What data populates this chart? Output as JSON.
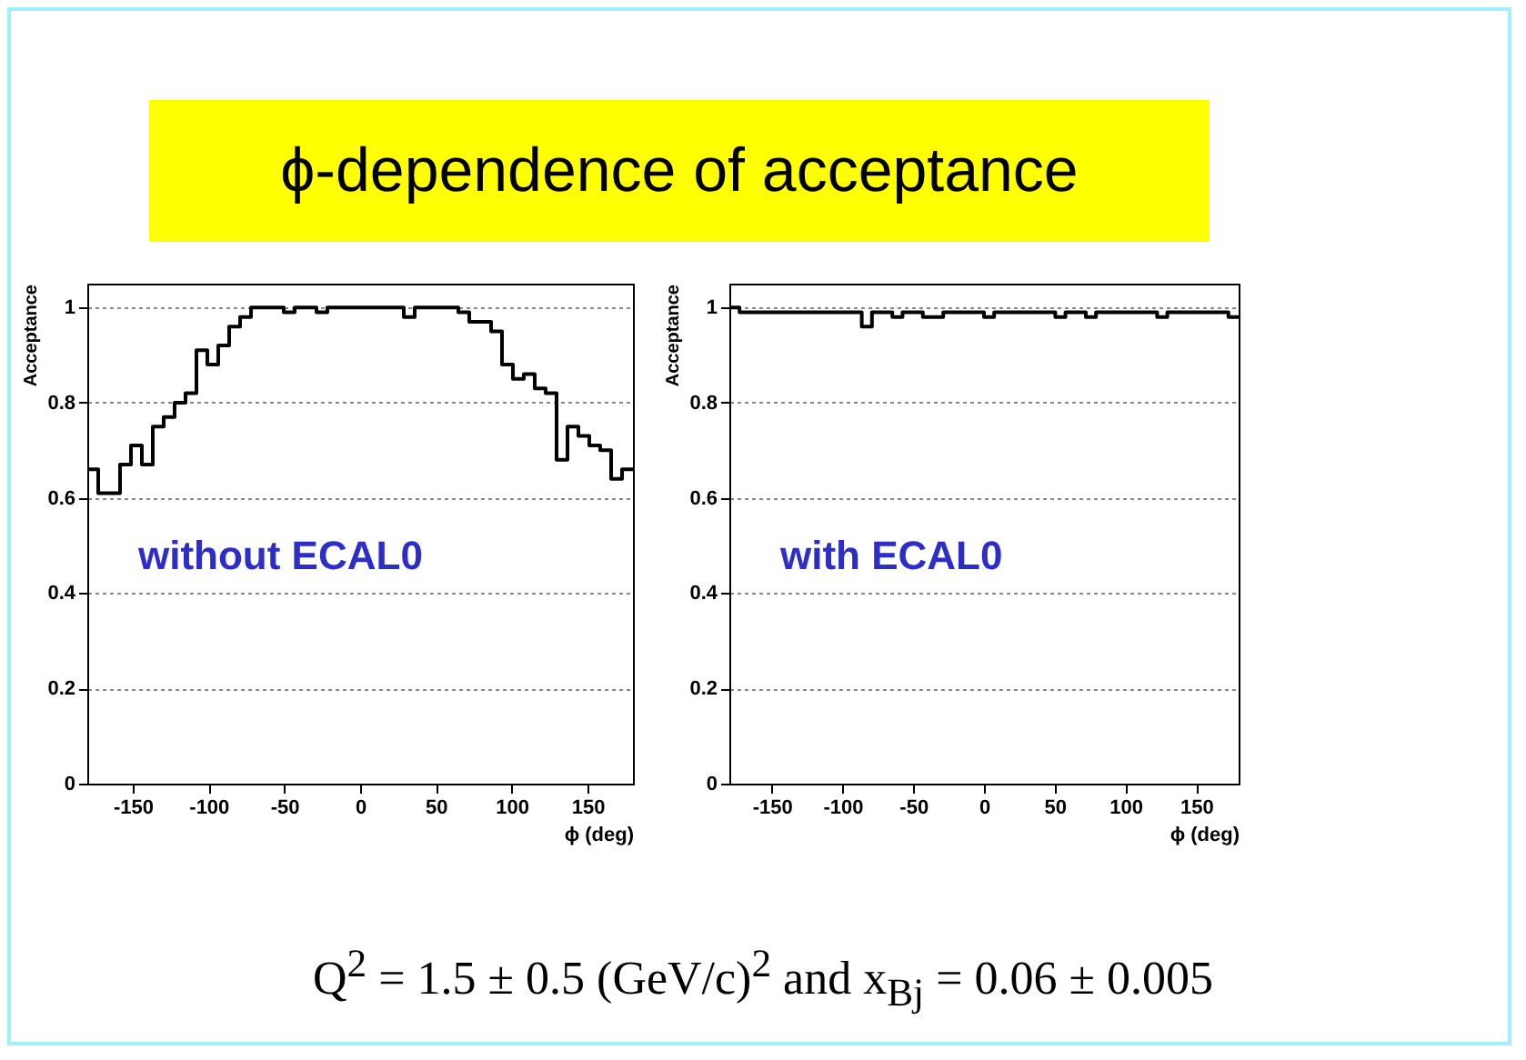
{
  "chart_data": [
    {
      "type": "histogram",
      "title": "ϕ-dependence of acceptance",
      "xlabel": "ϕ (deg)",
      "ylabel": "Acceptance",
      "annotations": [
        "without ECAL0"
      ],
      "bins": [
        -180,
        -172.8,
        -165.6,
        -158.4,
        -151.2,
        -144,
        -136.8,
        -129.6,
        -122.4,
        -115.2,
        -108,
        -100.8,
        -93.6,
        -86.4,
        -79.2,
        -72,
        -64.8,
        -57.6,
        -50.4,
        -43.2,
        -36,
        -28.8,
        -21.6,
        -14.4,
        -7.2,
        0,
        7.2,
        14.4,
        21.6,
        28.8,
        36,
        43.2,
        50.4,
        57.6,
        64.8,
        72,
        79.2,
        86.4,
        93.6,
        100.8,
        108,
        115.2,
        122.4,
        129.6,
        136.8,
        144,
        151.2,
        158.4,
        165.6,
        172.8,
        180
      ],
      "values": [
        0.66,
        0.61,
        0.61,
        0.67,
        0.71,
        0.67,
        0.75,
        0.77,
        0.8,
        0.82,
        0.91,
        0.88,
        0.92,
        0.96,
        0.98,
        1,
        1,
        1,
        0.99,
        1,
        1,
        0.99,
        1,
        1,
        1,
        1,
        1,
        1,
        1,
        0.98,
        1,
        1,
        1,
        1,
        0.99,
        0.97,
        0.97,
        0.95,
        0.88,
        0.85,
        0.86,
        0.83,
        0.82,
        0.68,
        0.75,
        0.73,
        0.71,
        0.7,
        0.64,
        0.66
      ],
      "color": "#000000",
      "xlim": [
        -180,
        180
      ],
      "ylim": [
        0,
        1.05
      ],
      "xticks": [
        -150,
        -100,
        -50,
        0,
        50,
        100,
        150
      ],
      "yticks": [
        0,
        0.2,
        0.4,
        0.6,
        0.8,
        1
      ],
      "grid": "y"
    },
    {
      "type": "histogram",
      "xlabel": "ϕ (deg)",
      "ylabel": "Acceptance",
      "annotations": [
        "with ECAL0",
        "Q$^{2}$ = 1.5 ± 0.5 (GeV/c)$^{2}$   and  x$_{Bj}$ = 0.06 ± 0.005"
      ],
      "bins": [
        -180,
        -172.8,
        -165.6,
        -158.4,
        -151.2,
        -144,
        -136.8,
        -129.6,
        -122.4,
        -115.2,
        -108,
        -100.8,
        -93.6,
        -86.4,
        -79.2,
        -72,
        -64.8,
        -57.6,
        -50.4,
        -43.2,
        -36,
        -28.8,
        -21.6,
        -14.4,
        -7.2,
        0,
        7.2,
        14.4,
        21.6,
        28.8,
        36,
        43.2,
        50.4,
        57.6,
        64.8,
        72,
        79.2,
        86.4,
        93.6,
        100.8,
        108,
        115.2,
        122.4,
        129.6,
        136.8,
        144,
        151.2,
        158.4,
        165.6,
        172.8,
        180
      ],
      "values": [
        1,
        0.99,
        0.99,
        0.99,
        0.99,
        0.99,
        0.99,
        0.99,
        0.99,
        0.99,
        0.99,
        0.99,
        0.99,
        0.96,
        0.99,
        0.99,
        0.98,
        0.99,
        0.99,
        0.98,
        0.98,
        0.99,
        0.99,
        0.99,
        0.99,
        0.98,
        0.99,
        0.99,
        0.99,
        0.99,
        0.99,
        0.99,
        0.98,
        0.99,
        0.99,
        0.98,
        0.99,
        0.99,
        0.99,
        0.99,
        0.99,
        0.99,
        0.98,
        0.99,
        0.99,
        0.99,
        0.99,
        0.99,
        0.99,
        0.98
      ],
      "color": "#000000",
      "xlim": [
        -180,
        180
      ],
      "ylim": [
        0,
        1.05
      ],
      "xticks": [
        -150,
        -100,
        -50,
        0,
        50,
        100,
        150
      ],
      "yticks": [
        0,
        0.2,
        0.4,
        0.6,
        0.8,
        1
      ],
      "grid": "y"
    }
  ]
}
